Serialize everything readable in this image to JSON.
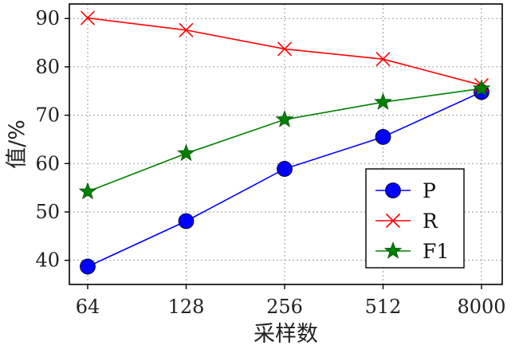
{
  "chart_data": {
    "type": "line",
    "xlabel": "采样数",
    "ylabel": "值/%",
    "categories": [
      "64",
      "128",
      "256",
      "512",
      "8000"
    ],
    "ylim": [
      35,
      93
    ],
    "yticks": [
      40,
      50,
      60,
      70,
      80,
      90
    ],
    "grid": true,
    "legend_position": "lower-right",
    "series": [
      {
        "name": "P",
        "color": "#0000ff",
        "marker": "circle",
        "values": [
          38.7,
          48.1,
          58.9,
          65.5,
          74.8
        ]
      },
      {
        "name": "R",
        "color": "#ff0000",
        "marker": "x",
        "values": [
          90.1,
          87.6,
          83.7,
          81.6,
          76.2
        ]
      },
      {
        "name": "F1",
        "color": "#008000",
        "marker": "star",
        "values": [
          54.2,
          62.1,
          69.1,
          72.7,
          75.5
        ]
      }
    ]
  }
}
